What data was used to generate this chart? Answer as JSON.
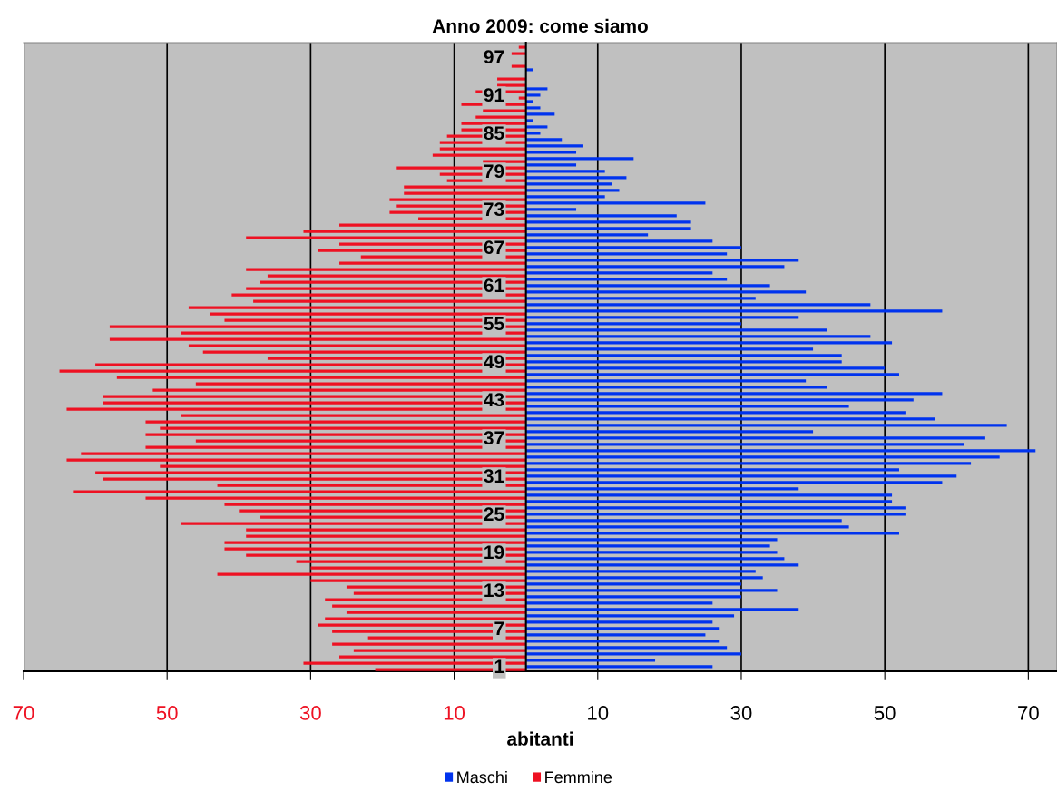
{
  "chart_data": {
    "type": "bar",
    "orientation": "horizontal",
    "title": "Anno 2009: come siamo",
    "xlabel": "abitanti",
    "categories": [
      null,
      null,
      "97",
      null,
      null,
      null,
      null,
      null,
      "91",
      null,
      null,
      null,
      null,
      null,
      "85",
      null,
      null,
      null,
      null,
      null,
      "79",
      null,
      null,
      null,
      null,
      null,
      "73",
      null,
      null,
      null,
      null,
      null,
      "67",
      null,
      null,
      null,
      null,
      null,
      "61",
      null,
      null,
      null,
      null,
      null,
      "55",
      null,
      null,
      null,
      null,
      null,
      "49",
      null,
      null,
      null,
      null,
      null,
      "43",
      null,
      null,
      null,
      null,
      null,
      "37",
      null,
      null,
      null,
      null,
      null,
      "31",
      null,
      null,
      null,
      null,
      null,
      "25",
      null,
      null,
      null,
      null,
      null,
      "19",
      null,
      null,
      null,
      null,
      null,
      "13",
      null,
      null,
      null,
      null,
      null,
      "7",
      null,
      null,
      null,
      null,
      null,
      "1"
    ],
    "series": [
      {
        "name": "Maschi",
        "color": "#0033ee",
        "values": [
          0,
          0,
          0,
          0,
          1,
          0,
          0,
          3,
          2,
          1,
          2,
          4,
          1,
          3,
          2,
          5,
          8,
          7,
          15,
          7,
          11,
          14,
          12,
          13,
          11,
          25,
          7,
          21,
          23,
          23,
          17,
          26,
          30,
          28,
          38,
          36,
          26,
          28,
          34,
          39,
          32,
          48,
          58,
          38,
          30,
          42,
          48,
          51,
          40,
          44,
          44,
          50,
          52,
          39,
          42,
          58,
          54,
          45,
          53,
          57,
          67,
          40,
          64,
          61,
          71,
          66,
          62,
          52,
          60,
          58,
          38,
          51,
          51,
          53,
          53,
          44,
          45,
          52,
          35,
          34,
          35,
          36,
          38,
          32,
          33,
          30,
          35,
          30,
          26,
          38,
          29,
          26,
          27,
          25,
          27,
          28,
          30,
          18,
          26
        ]
      },
      {
        "name": "Femmine",
        "color": "#ee1122",
        "values": [
          -1,
          -2,
          0,
          -2,
          0,
          -4,
          -4,
          -7,
          -1,
          -9,
          -6,
          -7,
          -9,
          -9,
          -11,
          -12,
          -12,
          -13,
          -6,
          -18,
          -12,
          -11,
          -17,
          -17,
          -19,
          -18,
          -19,
          -15,
          -26,
          -31,
          -39,
          -26,
          -29,
          -23,
          -26,
          -39,
          -36,
          -37,
          -39,
          -41,
          -38,
          -47,
          -44,
          -42,
          -58,
          -48,
          -58,
          -47,
          -45,
          -36,
          -60,
          -65,
          -57,
          -46,
          -52,
          -59,
          -59,
          -64,
          -48,
          -53,
          -51,
          -53,
          -46,
          -53,
          -62,
          -64,
          -51,
          -60,
          -59,
          -43,
          -63,
          -53,
          -42,
          -40,
          -37,
          -48,
          -39,
          -39,
          -42,
          -42,
          -39,
          -32,
          -30,
          -43,
          -30,
          -25,
          -24,
          -28,
          -27,
          -25,
          -28,
          -29,
          -27,
          -22,
          -27,
          -24,
          -26,
          -31,
          -21
        ]
      }
    ],
    "xlim": [
      -70,
      74
    ],
    "xticks": [
      {
        "value": -70,
        "label": "70"
      },
      {
        "value": -50,
        "label": "50"
      },
      {
        "value": -30,
        "label": "30"
      },
      {
        "value": -10,
        "label": "10"
      },
      10,
      30,
      50,
      70
    ],
    "grid": "x",
    "legend": "bottom"
  }
}
